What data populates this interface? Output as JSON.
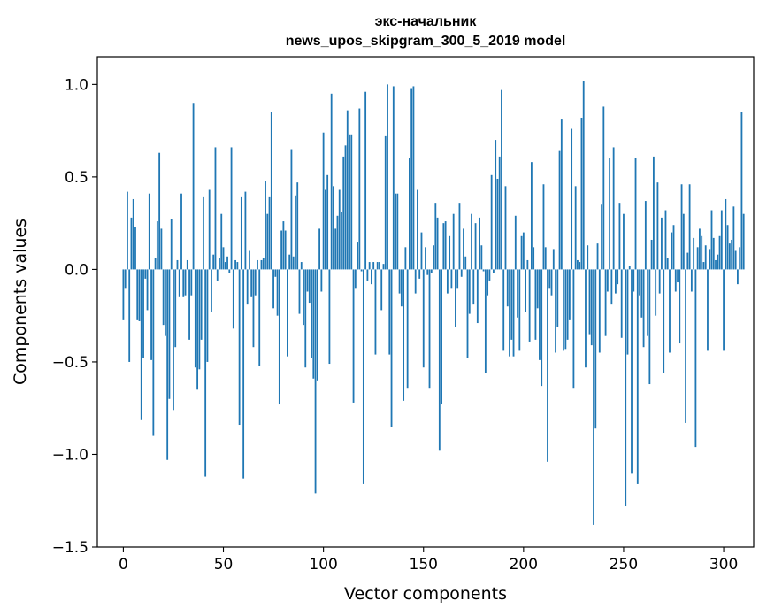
{
  "chart_data": {
    "type": "bar",
    "title_line1": "экс-начальник",
    "title_line2": "news_upos_skipgram_300_5_2019 model",
    "xlabel": "Vector components",
    "ylabel": "Components values",
    "xlim": [
      -13,
      315
    ],
    "ylim": [
      -1.5,
      1.15
    ],
    "x_ticks": [
      0,
      50,
      100,
      150,
      200,
      250,
      300
    ],
    "y_ticks": [
      -1.5,
      -1.0,
      -0.5,
      0.0,
      0.5,
      1.0
    ],
    "x_tick_labels": [
      "0",
      "50",
      "100",
      "150",
      "200",
      "250",
      "300"
    ],
    "y_tick_labels": [
      "−1.5",
      "−1.0",
      "−0.5",
      "0.0",
      "0.5",
      "1.0"
    ],
    "bar_color": "#1f77b4",
    "values": [
      -0.27,
      -0.1,
      0.42,
      -0.5,
      0.28,
      0.38,
      0.23,
      -0.27,
      -0.28,
      -0.81,
      -0.48,
      -0.05,
      -0.22,
      0.41,
      -0.49,
      -0.9,
      0.06,
      0.26,
      0.63,
      0.22,
      -0.3,
      -0.36,
      -1.03,
      -0.7,
      0.27,
      -0.76,
      -0.42,
      0.05,
      -0.15,
      0.41,
      -0.15,
      -0.14,
      0.05,
      -0.38,
      -0.14,
      0.9,
      -0.53,
      -0.65,
      -0.54,
      -0.38,
      0.39,
      -1.12,
      -0.5,
      0.43,
      -0.23,
      0.08,
      0.66,
      -0.06,
      0.06,
      0.3,
      0.12,
      0.04,
      0.07,
      -0.02,
      0.66,
      -0.32,
      0.05,
      0.04,
      -0.84,
      0.39,
      -1.13,
      0.42,
      -0.19,
      0.1,
      -0.15,
      -0.42,
      -0.14,
      0.05,
      -0.52,
      0.05,
      0.06,
      0.48,
      0.3,
      0.39,
      0.85,
      -0.21,
      -0.04,
      -0.25,
      -0.73,
      0.21,
      0.26,
      0.21,
      -0.47,
      0.08,
      0.65,
      0.07,
      0.4,
      0.47,
      -0.24,
      0.04,
      -0.3,
      -0.53,
      -0.12,
      -0.18,
      -0.48,
      -0.59,
      -1.21,
      -0.6,
      0.22,
      -0.12,
      0.74,
      0.43,
      0.51,
      -0.51,
      0.95,
      0.45,
      0.22,
      0.29,
      0.43,
      0.31,
      0.61,
      0.67,
      0.86,
      0.73,
      0.73,
      -0.72,
      -0.1,
      0.15,
      0.87,
      -0.01,
      -1.16,
      0.96,
      -0.06,
      0.04,
      -0.08,
      0.04,
      -0.46,
      0.04,
      0.04,
      -0.22,
      0.03,
      0.72,
      1.0,
      -0.46,
      -0.85,
      0.99,
      0.41,
      0.41,
      -0.13,
      -0.2,
      -0.71,
      0.12,
      -0.64,
      0.6,
      0.98,
      0.99,
      -0.13,
      0.43,
      -0.05,
      0.2,
      -0.53,
      0.12,
      -0.03,
      -0.64,
      -0.02,
      0.13,
      0.36,
      0.28,
      -0.98,
      -0.73,
      0.25,
      0.26,
      -0.13,
      0.18,
      -0.1,
      0.3,
      -0.31,
      -0.1,
      0.36,
      -0.04,
      0.22,
      0.07,
      -0.48,
      -0.24,
      0.3,
      -0.19,
      0.25,
      -0.29,
      0.28,
      0.13,
      -0.01,
      -0.56,
      -0.14,
      -0.06,
      0.51,
      -0.02,
      0.7,
      0.49,
      0.61,
      0.97,
      -0.44,
      0.45,
      -0.2,
      -0.47,
      -0.38,
      -0.47,
      0.29,
      -0.26,
      -0.44,
      0.18,
      0.2,
      -0.23,
      0.05,
      -0.39,
      0.58,
      0.12,
      -0.38,
      -0.21,
      -0.49,
      -0.63,
      0.46,
      0.12,
      -1.04,
      -0.1,
      -0.14,
      0.11,
      -0.45,
      -0.31,
      0.64,
      0.81,
      -0.44,
      -0.43,
      -0.38,
      -0.27,
      0.76,
      -0.64,
      0.45,
      0.05,
      0.04,
      0.82,
      1.02,
      -0.53,
      0.13,
      -0.35,
      -0.41,
      -1.38,
      -0.86,
      0.14,
      -0.45,
      0.35,
      0.88,
      -0.36,
      -0.12,
      0.6,
      -0.19,
      0.66,
      -0.13,
      -0.08,
      0.36,
      -0.37,
      0.3,
      -1.28,
      -0.46,
      0.02,
      -1.1,
      -0.12,
      0.6,
      -1.16,
      -0.14,
      -0.26,
      -0.42,
      0.37,
      -0.36,
      -0.62,
      0.16,
      0.61,
      -0.25,
      0.47,
      -0.13,
      0.28,
      -0.56,
      0.32,
      0.06,
      -0.45,
      0.2,
      0.24,
      -0.12,
      -0.07,
      -0.4,
      0.46,
      0.3,
      -0.83,
      0.09,
      0.46,
      -0.12,
      0.17,
      -0.96,
      0.12,
      0.22,
      0.18,
      0.04,
      0.13,
      -0.44,
      0.11,
      0.32,
      0.17,
      0.05,
      0.08,
      0.18,
      0.32,
      -0.44,
      0.38,
      0.24,
      0.14,
      0.16,
      0.34,
      0.1,
      -0.08,
      0.12,
      0.85,
      0.3
    ]
  }
}
